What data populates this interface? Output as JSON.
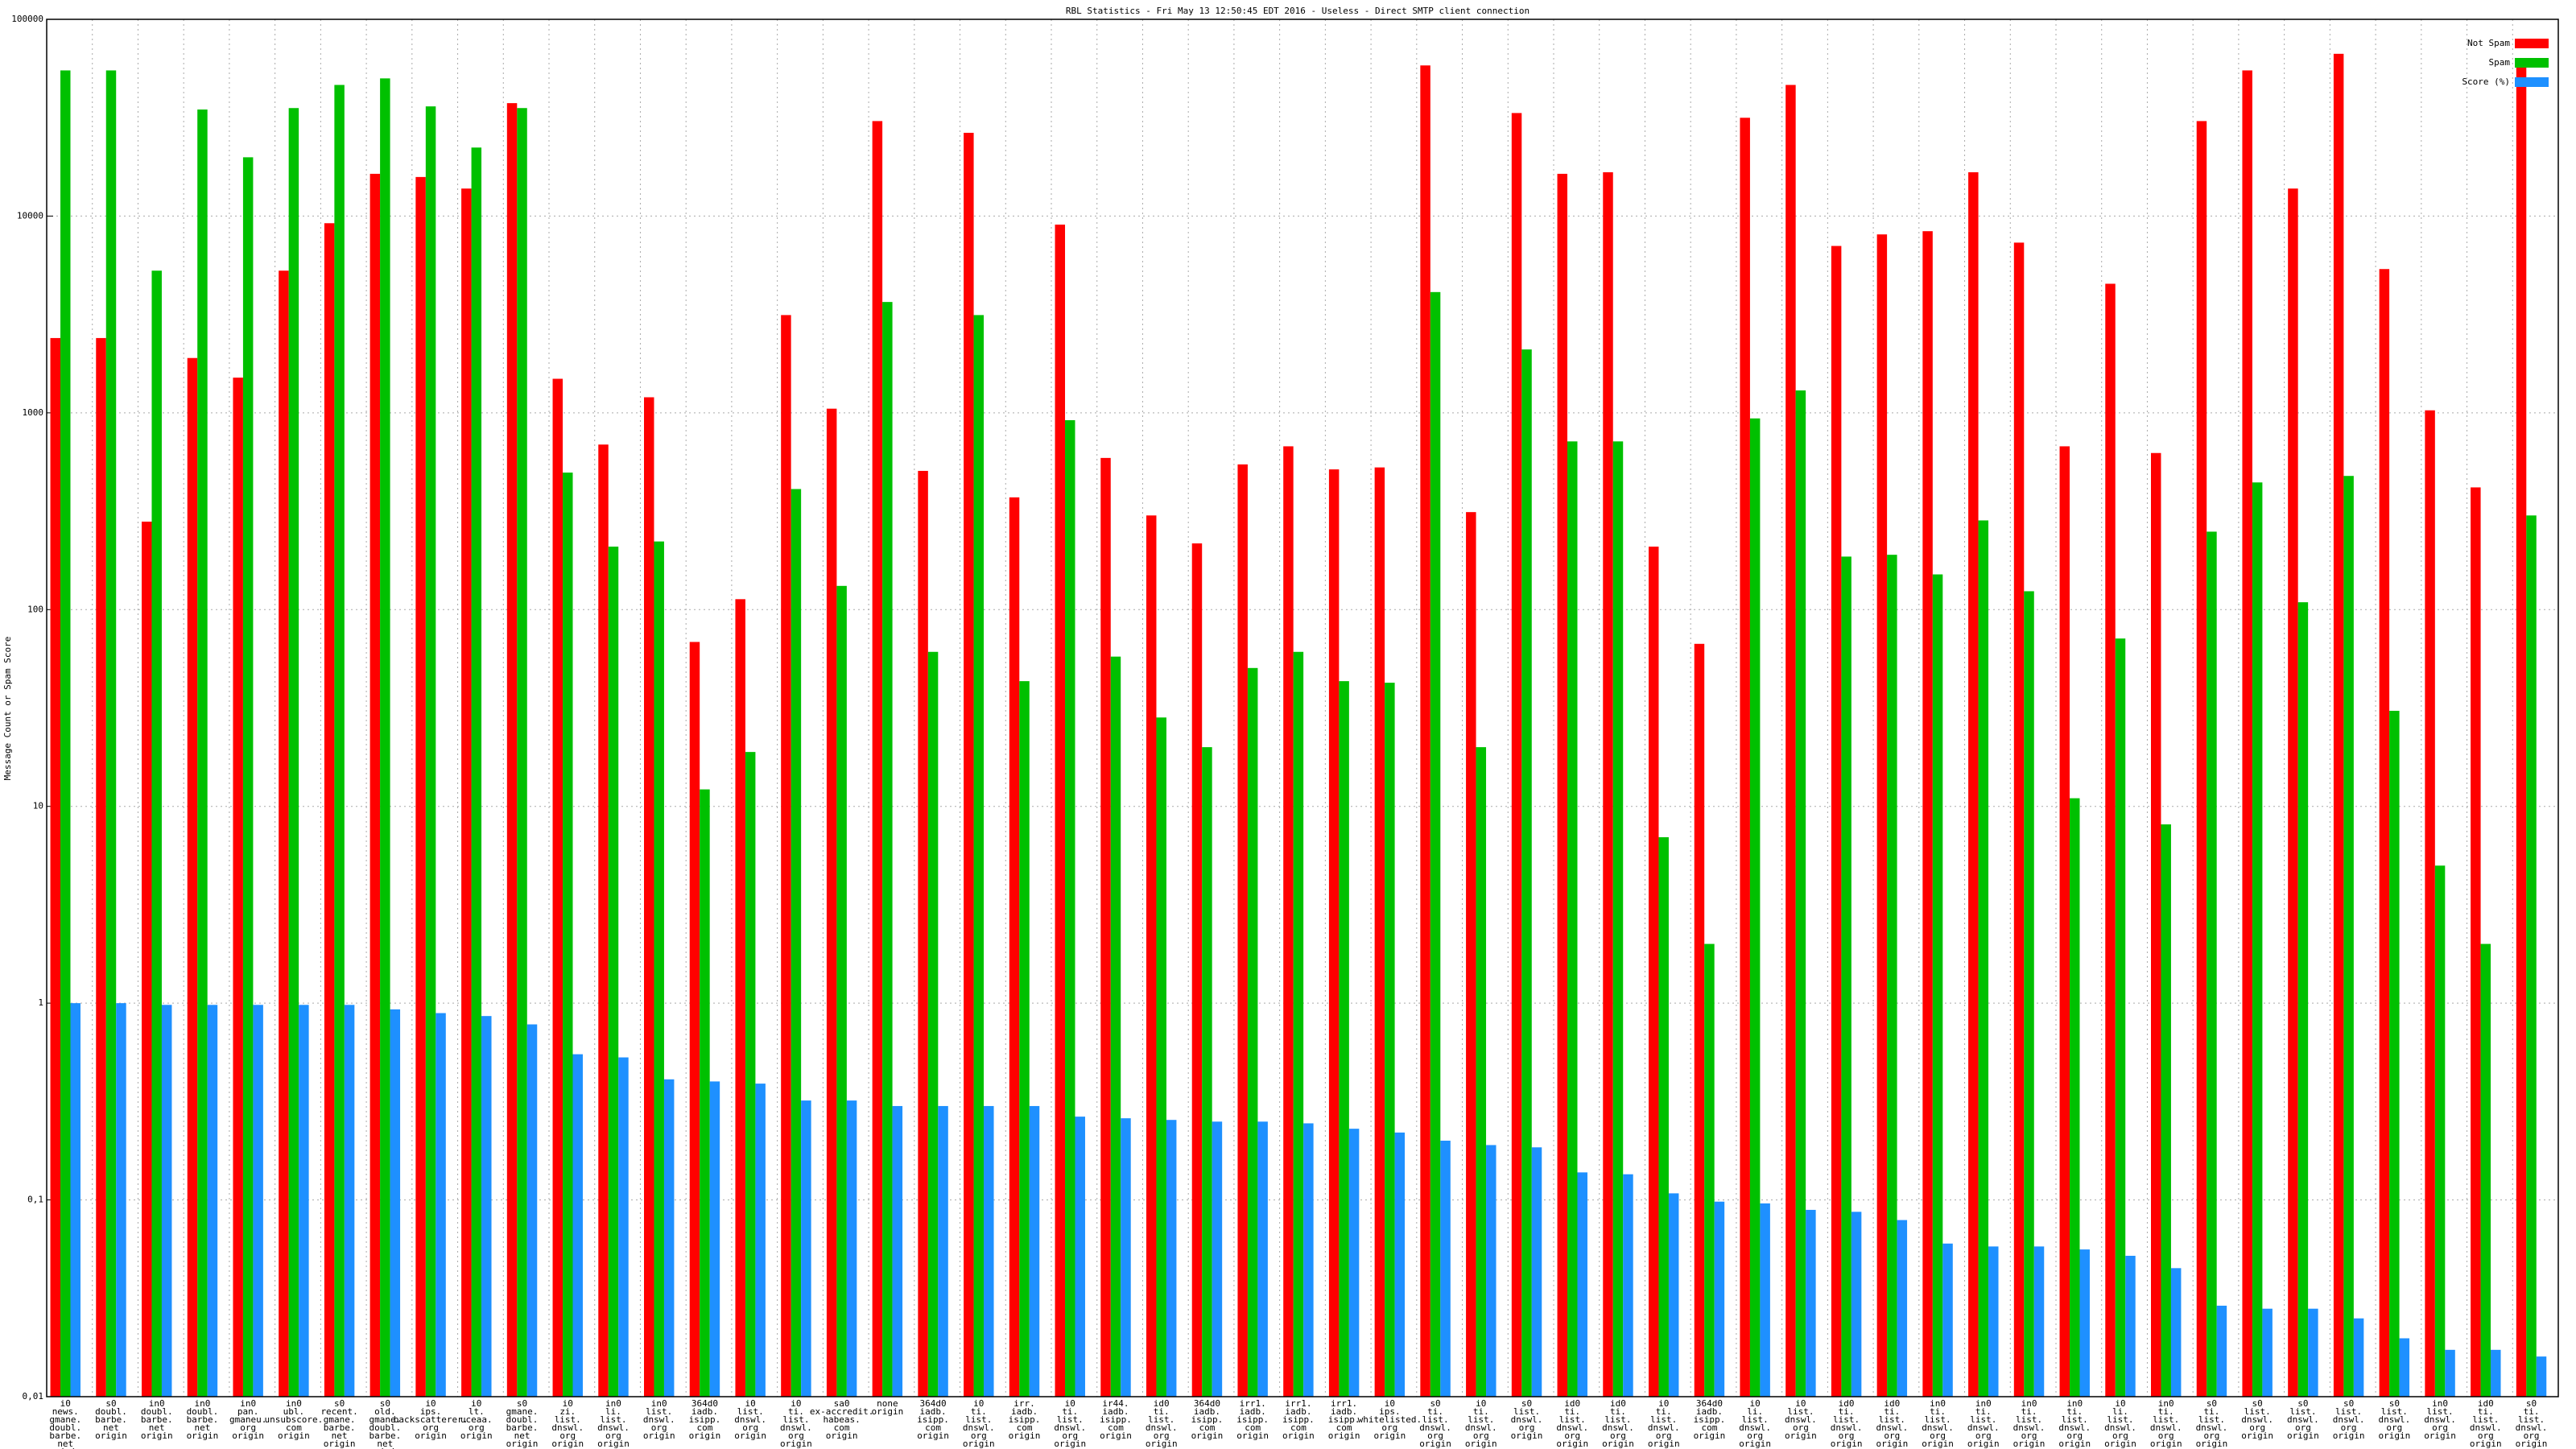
{
  "chart_data": {
    "type": "bar",
    "title": "RBL Statistics - Fri May 13 12:50:45 EDT 2016 - Useless - Direct SMTP client connection",
    "y_label": "Message Count or Spam Score",
    "log_scale": true,
    "grid": true,
    "legend": "top-right",
    "ylim": [
      0.01,
      100000
    ],
    "yticks": [
      {
        "value": 0.01,
        "label": "0,01"
      },
      {
        "value": 0.1,
        "label": "0,1"
      },
      1,
      10,
      100,
      1000,
      10000,
      100000
    ],
    "categories": [
      [
        "i0",
        "news.",
        "gmane.",
        "doubl.",
        "barbe.",
        "net",
        "origin"
      ],
      [
        "s0",
        "doubl.",
        "barbe.",
        "net",
        "origin"
      ],
      [
        "in0",
        "doubl.",
        "barbe.",
        "net",
        "origin"
      ],
      [
        "in0",
        "doubl.",
        "barbe.",
        "net",
        "origin"
      ],
      [
        "in0",
        "pan.",
        "gmaneu.",
        "org",
        "origin"
      ],
      [
        "in0",
        "ubl.",
        "unsubscore.",
        "com",
        "origin"
      ],
      [
        "s0",
        "recent.",
        "gmane.",
        "barbe.",
        "net",
        "origin"
      ],
      [
        "s0",
        "old.",
        "gmane.",
        "doubl.",
        "barbe.",
        "net",
        "origin"
      ],
      [
        "i0",
        "ips.",
        "backscatterer.",
        "org",
        "origin"
      ],
      [
        "i0",
        "lt.",
        "uceaa.",
        "org",
        "origin"
      ],
      [
        "s0",
        "gmane.",
        "doubl.",
        "barbe.",
        "net",
        "origin"
      ],
      [
        "i0",
        "zi.",
        "list.",
        "dnswl.",
        "org",
        "origin"
      ],
      [
        "in0",
        "li.",
        "list.",
        "dnswl.",
        "org",
        "origin"
      ],
      [
        "in0",
        "list.",
        "dnswl.",
        "org",
        "origin"
      ],
      [
        "364d0",
        "iadb.",
        "isipp.",
        "com",
        "origin"
      ],
      [
        "i0",
        "list.",
        "dnswl.",
        "org",
        "origin"
      ],
      [
        "i0",
        "ti.",
        "list.",
        "dnswl.",
        "org",
        "origin"
      ],
      [
        "sa0",
        "ex-accredit.",
        "habeas.",
        "com",
        "origin"
      ],
      [
        "none",
        "origin"
      ],
      [
        "364d0",
        "iadb.",
        "isipp.",
        "com",
        "origin"
      ],
      [
        "i0",
        "ti.",
        "list.",
        "dnswl.",
        "org",
        "origin"
      ],
      [
        "irr.",
        "iadb.",
        "isipp.",
        "com",
        "origin"
      ],
      [
        "i0",
        "ti.",
        "list.",
        "dnswl.",
        "org",
        "origin"
      ],
      [
        "ir44.",
        "iadb.",
        "isipp.",
        "com",
        "origin"
      ],
      [
        "id0",
        "ti.",
        "list.",
        "dnswl.",
        "org",
        "origin"
      ],
      [
        "364d0",
        "iadb.",
        "isipp.",
        "com",
        "origin"
      ],
      [
        "irr1.",
        "iadb.",
        "isipp.",
        "com",
        "origin"
      ],
      [
        "irr1.",
        "iadb.",
        "isipp.",
        "com",
        "origin"
      ],
      [
        "irr1.",
        "iadb.",
        "isipp.",
        "com",
        "origin"
      ],
      [
        "i0",
        "ips.",
        "whitelisted.",
        "org",
        "origin"
      ],
      [
        "s0",
        "ti.",
        "list.",
        "dnswl.",
        "org",
        "origin"
      ],
      [
        "i0",
        "ti.",
        "list.",
        "dnswl.",
        "org",
        "origin"
      ],
      [
        "s0",
        "list.",
        "dnswl.",
        "org",
        "origin"
      ],
      [
        "id0",
        "ti.",
        "list.",
        "dnswl.",
        "org",
        "origin"
      ],
      [
        "id0",
        "ti.",
        "list.",
        "dnswl.",
        "org",
        "origin"
      ],
      [
        "i0",
        "ti.",
        "list.",
        "dnswl.",
        "org",
        "origin"
      ],
      [
        "364d0",
        "iadb.",
        "isipp.",
        "com",
        "origin"
      ],
      [
        "i0",
        "li.",
        "list.",
        "dnswl.",
        "org",
        "origin"
      ],
      [
        "i0",
        "list.",
        "dnswl.",
        "org",
        "origin"
      ],
      [
        "id0",
        "ti.",
        "list.",
        "dnswl.",
        "org",
        "origin"
      ],
      [
        "id0",
        "ti.",
        "list.",
        "dnswl.",
        "org",
        "origin"
      ],
      [
        "in0",
        "ti.",
        "list.",
        "dnswl.",
        "org",
        "origin"
      ],
      [
        "in0",
        "ti.",
        "list.",
        "dnswl.",
        "org",
        "origin"
      ],
      [
        "in0",
        "ti.",
        "list.",
        "dnswl.",
        "org",
        "origin"
      ],
      [
        "in0",
        "ti.",
        "list.",
        "dnswl.",
        "org",
        "origin"
      ],
      [
        "i0",
        "li.",
        "list.",
        "dnswl.",
        "org",
        "origin"
      ],
      [
        "in0",
        "ti.",
        "list.",
        "dnswl.",
        "org",
        "origin"
      ],
      [
        "s0",
        "ti.",
        "list.",
        "dnswl.",
        "org",
        "origin"
      ],
      [
        "s0",
        "list.",
        "dnswl.",
        "org",
        "origin"
      ],
      [
        "s0",
        "list.",
        "dnswl.",
        "org",
        "origin"
      ],
      [
        "s0",
        "list.",
        "dnswl.",
        "org",
        "origin"
      ],
      [
        "s0",
        "list.",
        "dnswl.",
        "org",
        "origin"
      ],
      [
        "in0",
        "list.",
        "dnswl.",
        "org",
        "origin"
      ],
      [
        "id0",
        "ti.",
        "list.",
        "dnswl.",
        "org",
        "origin"
      ],
      [
        "s0",
        "ti.",
        "list.",
        "dnswl.",
        "org",
        "origin"
      ]
    ],
    "series": [
      {
        "name": "Not Spam",
        "color": "#ff0000",
        "values": [
          2400,
          2400,
          280,
          1900,
          1510,
          5280,
          9200,
          16400,
          15800,
          13800,
          37500,
          1490,
          690,
          1200,
          68.5,
          113,
          3140,
          1050,
          30400,
          507,
          26500,
          372,
          9050,
          590,
          301,
          217,
          547,
          676,
          516,
          528,
          58300,
          313,
          33400,
          16400,
          16700,
          209,
          67,
          31600,
          46400,
          7050,
          8070,
          8380,
          16700,
          7330,
          676,
          4530,
          625,
          30400,
          55000,
          13800,
          66800,
          5380,
          1030,
          418,
          60000
        ]
      },
      {
        "name": "Spam",
        "color": "#00c000",
        "values": [
          55000,
          55000,
          5280,
          34800,
          19900,
          35400,
          46400,
          50100,
          36100,
          22300,
          35400,
          497,
          209,
          222,
          12.2,
          18.9,
          410,
          132,
          3660,
          61,
          3140,
          43.3,
          918,
          57.7,
          28.3,
          20,
          50.5,
          61,
          43.3,
          42.5,
          4110,
          20,
          2100,
          716,
          716,
          6.97,
          2.0,
          937,
          1300,
          186,
          190,
          151,
          284,
          124,
          11,
          71.3,
          8.1,
          249,
          443,
          109,
          478,
          30.6,
          5.0,
          2.0,
          301
        ]
      },
      {
        "name": "Score (%)",
        "color": "#1e90ff",
        "values": [
          1.0,
          1.0,
          0.98,
          0.98,
          0.98,
          0.98,
          0.98,
          0.93,
          0.89,
          0.86,
          0.78,
          0.55,
          0.53,
          0.41,
          0.4,
          0.39,
          0.32,
          0.32,
          0.3,
          0.3,
          0.3,
          0.3,
          0.265,
          0.26,
          0.255,
          0.25,
          0.25,
          0.245,
          0.23,
          0.22,
          0.2,
          0.19,
          0.185,
          0.138,
          0.135,
          0.108,
          0.098,
          0.096,
          0.089,
          0.087,
          0.079,
          0.06,
          0.058,
          0.058,
          0.056,
          0.052,
          0.045,
          0.029,
          0.028,
          0.028,
          0.025,
          0.0198,
          0.0173,
          0.0173,
          0.016
        ]
      }
    ]
  }
}
